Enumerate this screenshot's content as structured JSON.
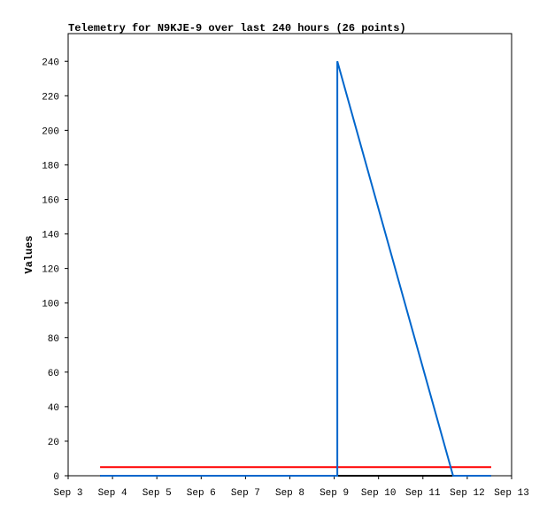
{
  "chart_data": {
    "type": "line",
    "title": "Telemetry for N9KJE-9 over last 240 hours (26 points)",
    "y_label": "Values",
    "xlim": [
      3,
      13
    ],
    "xticks": [
      {
        "value": 3,
        "label": "Sep 3"
      },
      {
        "value": 4,
        "label": "Sep 4"
      },
      {
        "value": 5,
        "label": "Sep 5"
      },
      {
        "value": 6,
        "label": "Sep 6"
      },
      {
        "value": 7,
        "label": "Sep 7"
      },
      {
        "value": 8,
        "label": "Sep 8"
      },
      {
        "value": 9,
        "label": "Sep 9"
      },
      {
        "value": 10,
        "label": "Sep 10"
      },
      {
        "value": 11,
        "label": "Sep 11"
      },
      {
        "value": 12,
        "label": "Sep 12"
      },
      {
        "value": 13,
        "label": "Sep 13"
      }
    ],
    "ylim": [
      0,
      256
    ],
    "yticks": [
      0,
      20,
      40,
      60,
      80,
      100,
      120,
      140,
      160,
      180,
      200,
      220,
      240
    ],
    "series": [
      {
        "color": "#000000",
        "x": [
          3.72,
          12.54
        ],
        "values": [
          0,
          0
        ]
      },
      {
        "color": "#ff0000",
        "x": [
          3.72,
          12.54
        ],
        "values": [
          5,
          5
        ]
      },
      {
        "color": "#0066cc",
        "x": [
          3.72,
          9.07,
          9.07,
          11.68,
          12.54
        ],
        "values": [
          0,
          0,
          240,
          0,
          0
        ]
      }
    ]
  }
}
